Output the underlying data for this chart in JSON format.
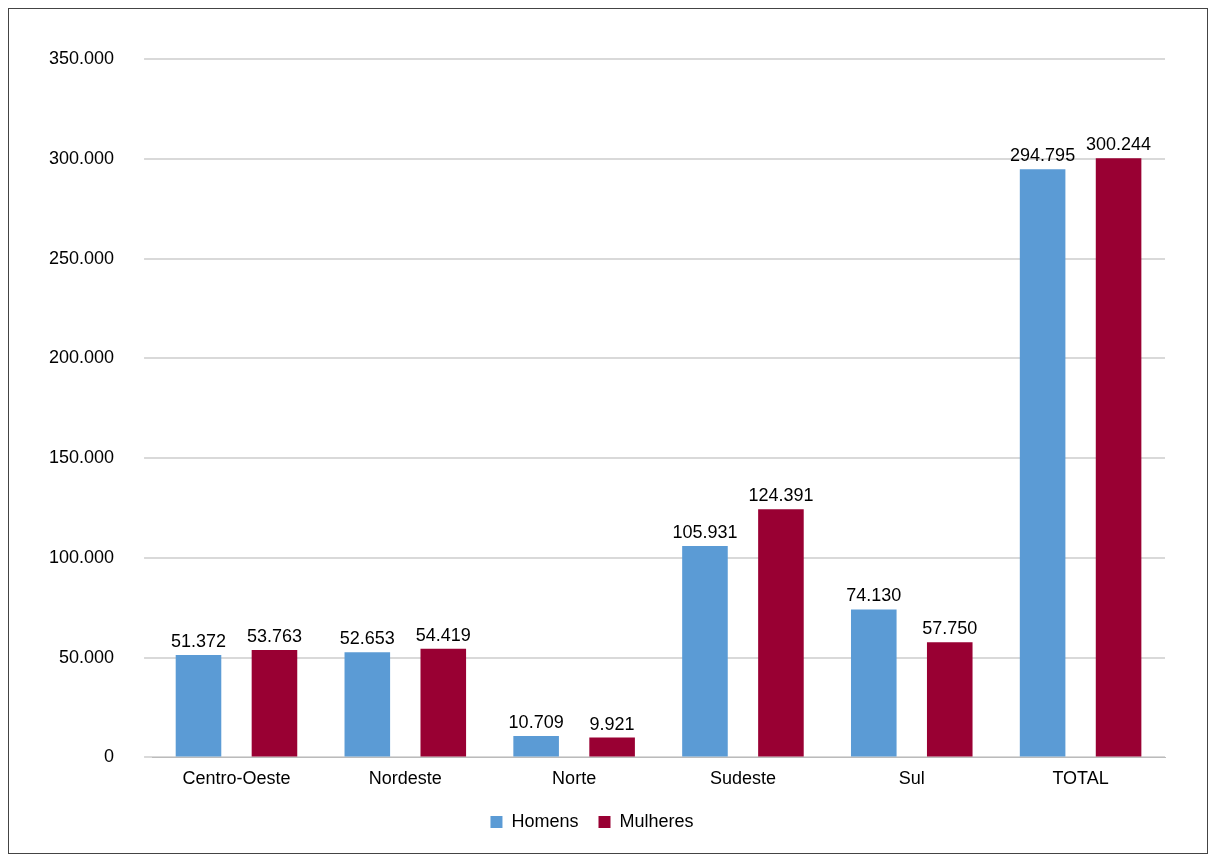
{
  "chart_data": {
    "type": "bar",
    "categories": [
      "Centro-Oeste",
      "Nordeste",
      "Norte",
      "Sudeste",
      "Sul",
      "TOTAL"
    ],
    "series": [
      {
        "name": "Homens",
        "color": "#5b9bd5",
        "values": [
          51372,
          52653,
          10709,
          105931,
          74130,
          294795
        ],
        "value_labels": [
          "51.372",
          "52.653",
          "10.709",
          "105.931",
          "74.130",
          "294.795"
        ]
      },
      {
        "name": "Mulheres",
        "color": "#990033",
        "values": [
          53763,
          54419,
          9921,
          124391,
          57750,
          300244
        ],
        "value_labels": [
          "53.763",
          "54.419",
          "9.921",
          "124.391",
          "57.750",
          "300.244"
        ]
      }
    ],
    "ylim": [
      0,
      350000
    ],
    "yticks": [
      {
        "value": 0,
        "label": "0"
      },
      {
        "value": 50000,
        "label": "50.000"
      },
      {
        "value": 100000,
        "label": "100.000"
      },
      {
        "value": 150000,
        "label": "150.000"
      },
      {
        "value": 200000,
        "label": "200.000"
      },
      {
        "value": 250000,
        "label": "250.000"
      },
      {
        "value": 300000,
        "label": "300.000"
      },
      {
        "value": 350000,
        "label": "350.000"
      }
    ],
    "grid": "y",
    "legend": "bottom"
  }
}
